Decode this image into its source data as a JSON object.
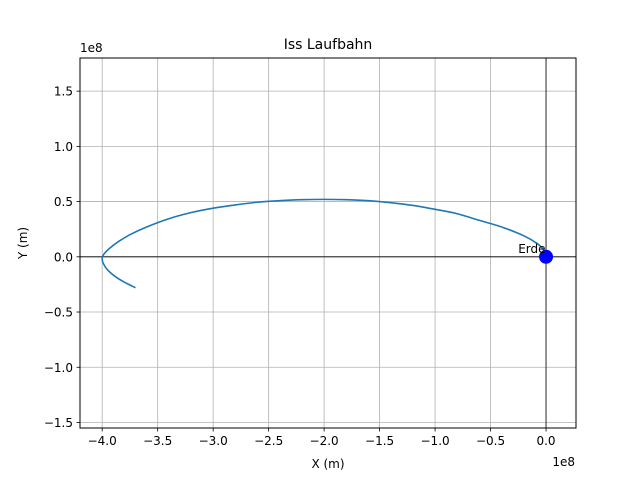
{
  "chart_data": {
    "type": "line",
    "title": "Iss Laufbahn",
    "xlabel": "X (m)",
    "ylabel": "Y (m)",
    "x_offset_text": "1e8",
    "y_offset_text": "1e8",
    "xlim": [
      -4.2,
      0.27
    ],
    "ylim": [
      -1.55,
      1.8
    ],
    "xticks": [
      -4.0,
      -3.5,
      -3.0,
      -2.5,
      -2.0,
      -1.5,
      -1.0,
      -0.5,
      0.0
    ],
    "xtick_labels": [
      "−4.0",
      "−3.5",
      "−3.0",
      "−2.5",
      "−2.0",
      "−1.5",
      "−1.0",
      "−0.5",
      "0.0"
    ],
    "yticks": [
      -1.5,
      -1.0,
      -0.5,
      0.0,
      0.5,
      1.0,
      1.5
    ],
    "ytick_labels": [
      "−1.5",
      "−1.0",
      "−0.5",
      "0.0",
      "0.5",
      "1.0",
      "1.5"
    ],
    "grid": true,
    "series": [
      {
        "color": "#1f77b4",
        "x": [
          0.0,
          -0.02,
          -0.08,
          -0.2,
          -0.4,
          -0.6,
          -0.8,
          -1.0,
          -1.2,
          -1.4,
          -1.6,
          -1.8,
          -2.0,
          -2.2,
          -2.4,
          -2.6,
          -2.8,
          -3.0,
          -3.2,
          -3.4,
          -3.6,
          -3.75,
          -3.85,
          -3.93,
          -3.98,
          -4.0,
          -3.99,
          -3.95,
          -3.88,
          -3.8,
          -3.7
        ],
        "y": [
          0.0,
          0.06,
          0.12,
          0.19,
          0.27,
          0.33,
          0.39,
          0.43,
          0.465,
          0.49,
          0.508,
          0.517,
          0.52,
          0.517,
          0.508,
          0.494,
          0.47,
          0.44,
          0.4,
          0.345,
          0.27,
          0.2,
          0.14,
          0.08,
          0.03,
          -0.01,
          -0.06,
          -0.12,
          -0.18,
          -0.23,
          -0.28
        ]
      }
    ],
    "marker": {
      "x": 0.0,
      "y": 0.0,
      "color": "#0000ff",
      "label": "Erde"
    }
  }
}
